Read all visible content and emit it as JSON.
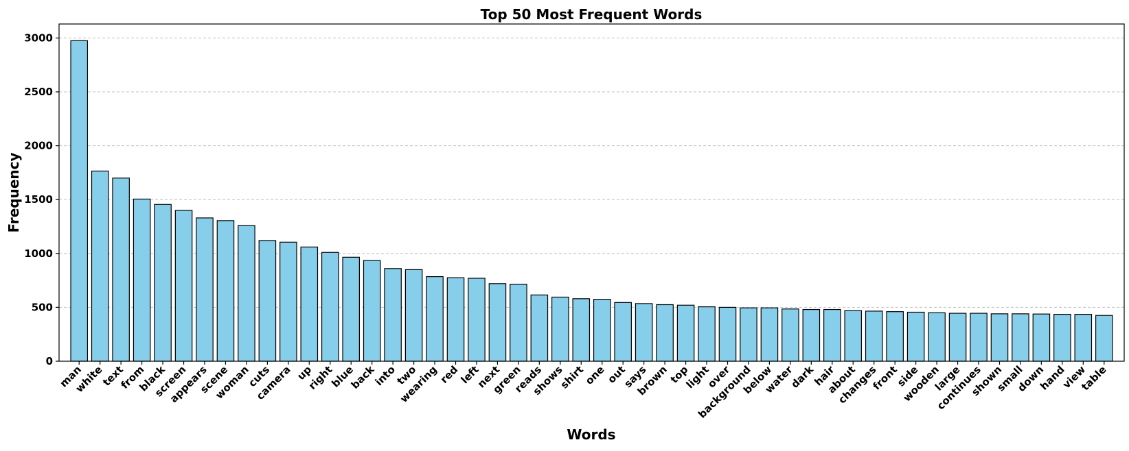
{
  "chart_data": {
    "type": "bar",
    "title": "Top 50 Most Frequent Words",
    "xlabel": "Words",
    "ylabel": "Frequency",
    "ylim": [
      0,
      3130
    ],
    "yticks": [
      0,
      500,
      1000,
      1500,
      2000,
      2500,
      3000
    ],
    "grid": "y-dashed",
    "bar_color": "#87CEEB",
    "edge_color": "#000000",
    "categories": [
      "man",
      "white",
      "text",
      "from",
      "black",
      "screen",
      "appears",
      "scene",
      "woman",
      "cuts",
      "camera",
      "up",
      "right",
      "blue",
      "back",
      "into",
      "two",
      "wearing",
      "red",
      "left",
      "next",
      "green",
      "reads",
      "shows",
      "shirt",
      "one",
      "out",
      "says",
      "brown",
      "top",
      "light",
      "over",
      "background",
      "below",
      "water",
      "dark",
      "hair",
      "about",
      "changes",
      "front",
      "side",
      "wooden",
      "large",
      "continues",
      "shown",
      "small",
      "down",
      "hand",
      "view",
      "table"
    ],
    "values": [
      2975,
      1765,
      1700,
      1505,
      1455,
      1400,
      1330,
      1305,
      1260,
      1120,
      1105,
      1060,
      1010,
      965,
      935,
      860,
      850,
      785,
      775,
      770,
      720,
      715,
      615,
      595,
      580,
      575,
      545,
      535,
      525,
      520,
      505,
      500,
      495,
      495,
      485,
      480,
      480,
      470,
      465,
      460,
      455,
      450,
      445,
      445,
      440,
      440,
      438,
      435,
      435,
      425
    ]
  }
}
